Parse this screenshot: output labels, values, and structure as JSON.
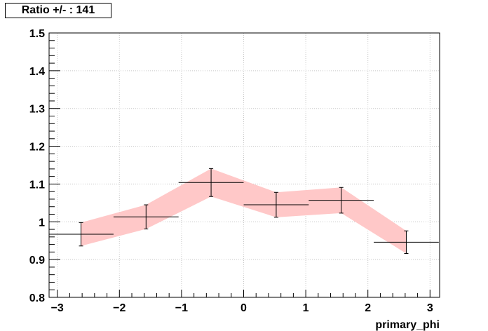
{
  "chart_data": {
    "type": "line",
    "title": "Ratio +/- : 141",
    "xlabel": "primary_phi",
    "ylabel": "",
    "xlim": [
      -3.14159,
      3.14159
    ],
    "ylim": [
      0.8,
      1.5
    ],
    "grid": true,
    "x_ticks": [
      "−3",
      "−2",
      "−1",
      "0",
      "1",
      "2",
      "3"
    ],
    "y_ticks": [
      "0.8",
      "0.9",
      "1",
      "1.1",
      "1.2",
      "1.3",
      "1.4",
      "1.5"
    ],
    "series": [
      {
        "x": [
          -2.618,
          -1.571,
          -0.524,
          0.524,
          1.571,
          2.618
        ],
        "xerr": [
          0.5236,
          0.5236,
          0.5236,
          0.5236,
          0.5236,
          0.5236
        ],
        "y": [
          0.967,
          1.013,
          1.104,
          1.045,
          1.057,
          0.946
        ],
        "yerr": [
          0.031,
          0.032,
          0.037,
          0.033,
          0.034,
          0.03
        ]
      }
    ],
    "band": {
      "color": "#ffc8c8",
      "x": [
        -2.618,
        -1.571,
        -0.524,
        0.524,
        1.571,
        2.618
      ],
      "lower": [
        0.936,
        0.981,
        1.067,
        1.012,
        1.023,
        0.916
      ],
      "upper": [
        0.998,
        1.045,
        1.141,
        1.078,
        1.091,
        0.976
      ]
    }
  }
}
